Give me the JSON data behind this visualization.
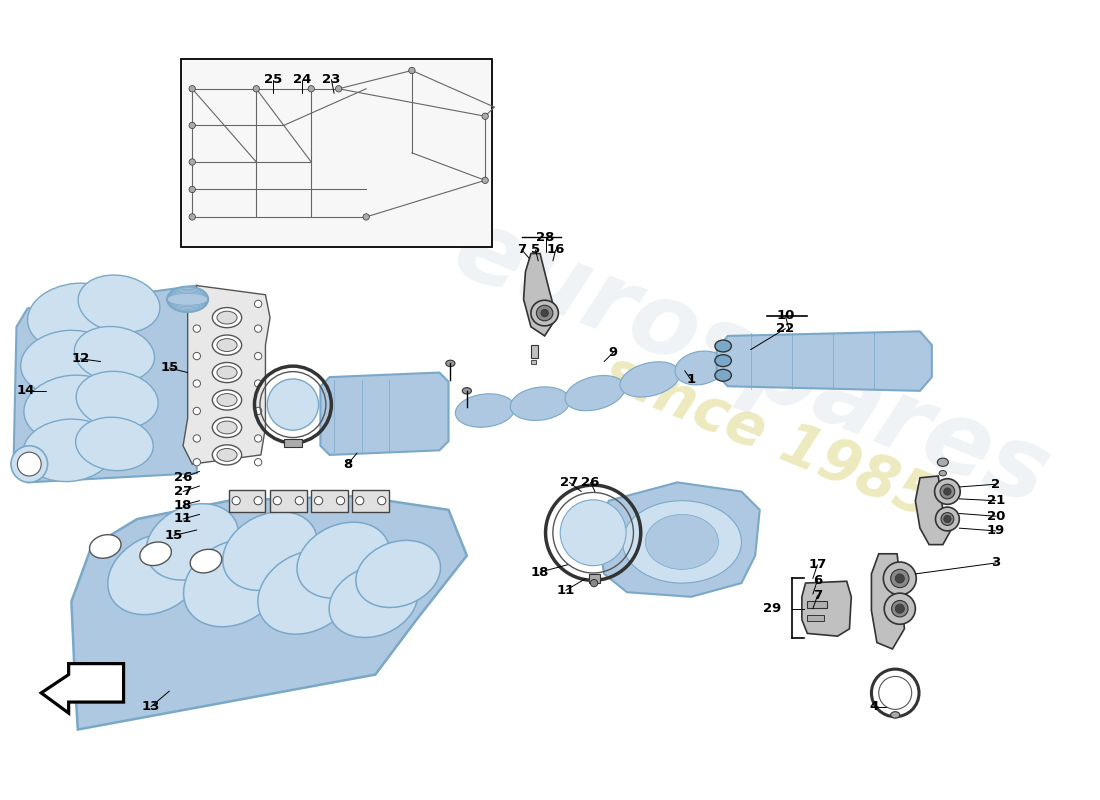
{
  "bg_color": "#ffffff",
  "pc": "#adc8e0",
  "pd": "#7aa8c8",
  "pl": "#cce0f0",
  "gray1": "#c0c0c0",
  "gray2": "#888888",
  "wm1": "#c8d4e0",
  "wm2": "#d8d070",
  "fs": 9.5
}
